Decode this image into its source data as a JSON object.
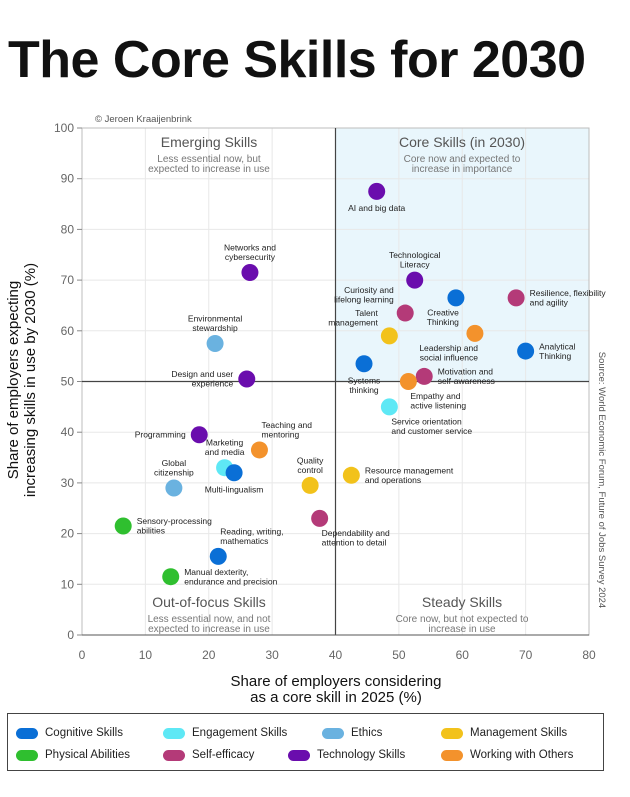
{
  "title": "The Core Skills for 2030",
  "copyright": "© Jeroen Kraaijenbrink",
  "source": "Source: World Economic Forum, Future of Jobs Survey 2024",
  "quadrants": {
    "top_left": {
      "title": "Emerging Skills",
      "sub1": "Less essential now, but",
      "sub2": "expected to increase in use"
    },
    "top_right": {
      "title": "Core Skills (in 2030)",
      "sub1": "Core now and expected to",
      "sub2": "increase in importance"
    },
    "bottom_left": {
      "title": "Out-of-focus Skills",
      "sub1": "Less essential now, and not",
      "sub2": "expected to increase in use"
    },
    "bottom_right": {
      "title": "Steady Skills",
      "sub1": "Core now, but not expected to",
      "sub2": "increase in use"
    }
  },
  "categories": [
    {
      "key": "cognitive",
      "label": "Cognitive Skills",
      "color": "#0a6fd6"
    },
    {
      "key": "engagement",
      "label": "Engagement Skills",
      "color": "#5ee8f5"
    },
    {
      "key": "ethics",
      "label": "Ethics",
      "color": "#6ab2e0"
    },
    {
      "key": "management",
      "label": "Management Skills",
      "color": "#f2c21b"
    },
    {
      "key": "physical",
      "label": "Physical Abilities",
      "color": "#2fbf2f"
    },
    {
      "key": "self_efficacy",
      "label": "Self-efficacy",
      "color": "#b43a78"
    },
    {
      "key": "technology",
      "label": "Technology Skills",
      "color": "#6a0dad"
    },
    {
      "key": "working_with_others",
      "label": "Working with Others",
      "color": "#f3922c"
    }
  ],
  "chart_data": {
    "type": "scatter",
    "title": "The Core Skills for 2030",
    "xlabel_line1": "Share of employers considering",
    "xlabel_line2": "as a core skill in 2025 (%)",
    "ylabel_line1": "Share of employers expecting",
    "ylabel_line2": "increasing skills in use by 2030 (%)",
    "xlim": [
      0,
      80
    ],
    "ylim": [
      0,
      100
    ],
    "xticks": [
      0,
      10,
      20,
      30,
      40,
      50,
      60,
      70,
      80
    ],
    "yticks": [
      0,
      10,
      20,
      30,
      40,
      50,
      60,
      70,
      80,
      90,
      100
    ],
    "divider_x": 40,
    "divider_y": 50,
    "points": [
      {
        "label": [
          "AI and big data"
        ],
        "x": 46.5,
        "y": 87.5,
        "category": "technology",
        "anchor": "below"
      },
      {
        "label": [
          "Networks and",
          "cybersecurity"
        ],
        "x": 26.5,
        "y": 71.5,
        "category": "technology",
        "anchor": "above"
      },
      {
        "label": [
          "Technological",
          "Literacy"
        ],
        "x": 52.5,
        "y": 70,
        "category": "technology",
        "anchor": "above"
      },
      {
        "label": [
          "Curiosity and",
          "lifelong learning"
        ],
        "x": 51,
        "y": 63.5,
        "category": "self_efficacy",
        "anchor": "upper-left"
      },
      {
        "label": [
          "Creative",
          "Thinking"
        ],
        "x": 59,
        "y": 66.5,
        "category": "cognitive",
        "anchor": "lower-left"
      },
      {
        "label": [
          "Resilience, flexibility",
          "and agility"
        ],
        "x": 68.5,
        "y": 66.5,
        "category": "self_efficacy",
        "anchor": "right"
      },
      {
        "label": [
          "Environmental",
          "stewardship"
        ],
        "x": 21,
        "y": 57.5,
        "category": "ethics",
        "anchor": "above"
      },
      {
        "label": [
          "Talent",
          "management"
        ],
        "x": 48.5,
        "y": 59,
        "category": "management",
        "anchor": "upper-left"
      },
      {
        "label": [
          "Leadership and",
          "social influence"
        ],
        "x": 62,
        "y": 59.5,
        "category": "working_with_others",
        "anchor": "lower-left"
      },
      {
        "label": [
          "Analytical",
          "Thinking"
        ],
        "x": 70,
        "y": 56,
        "category": "cognitive",
        "anchor": "right"
      },
      {
        "label": [
          "Design and user",
          "experience"
        ],
        "x": 26,
        "y": 50.5,
        "category": "technology",
        "anchor": "left"
      },
      {
        "label": [
          "Systems",
          "thinking"
        ],
        "x": 44.5,
        "y": 53.5,
        "category": "cognitive",
        "anchor": "below"
      },
      {
        "label": [
          "Motivation and",
          "self-awareness"
        ],
        "x": 54,
        "y": 51,
        "category": "self_efficacy",
        "anchor": "right"
      },
      {
        "label": [
          "Empathy and",
          "active listening"
        ],
        "x": 51.5,
        "y": 50,
        "category": "working_with_others",
        "anchor": "lower-right"
      },
      {
        "label": [
          "Service orientation",
          "and customer service"
        ],
        "x": 48.5,
        "y": 45,
        "category": "engagement",
        "anchor": "lower-right"
      },
      {
        "label": [
          "Programming"
        ],
        "x": 18.5,
        "y": 39.5,
        "category": "technology",
        "anchor": "left"
      },
      {
        "label": [
          "Marketing",
          "and media"
        ],
        "x": 22.5,
        "y": 33,
        "category": "engagement",
        "anchor": "above"
      },
      {
        "label": [
          "Teaching and",
          "mentoring"
        ],
        "x": 28,
        "y": 36.5,
        "category": "working_with_others",
        "anchor": "upper-right"
      },
      {
        "label": [
          "Multi-lingualism"
        ],
        "x": 24,
        "y": 32,
        "category": "cognitive",
        "anchor": "below"
      },
      {
        "label": [
          "Global",
          "citizenship"
        ],
        "x": 14.5,
        "y": 29,
        "category": "ethics",
        "anchor": "above"
      },
      {
        "label": [
          "Quality",
          "control"
        ],
        "x": 36,
        "y": 29.5,
        "category": "management",
        "anchor": "above"
      },
      {
        "label": [
          "Resource management",
          "and operations"
        ],
        "x": 42.5,
        "y": 31.5,
        "category": "management",
        "anchor": "right"
      },
      {
        "label": [
          "Sensory-processing",
          "abilities"
        ],
        "x": 6.5,
        "y": 21.5,
        "category": "physical",
        "anchor": "right"
      },
      {
        "label": [
          "Dependability and",
          "attention to detail"
        ],
        "x": 37.5,
        "y": 23,
        "category": "self_efficacy",
        "anchor": "lower-right"
      },
      {
        "label": [
          "Reading, writing,",
          "mathematics"
        ],
        "x": 21.5,
        "y": 15.5,
        "category": "cognitive",
        "anchor": "upper-right"
      },
      {
        "label": [
          "Manual dexterity,",
          "endurance and precision"
        ],
        "x": 14,
        "y": 11.5,
        "category": "physical",
        "anchor": "right"
      }
    ]
  }
}
